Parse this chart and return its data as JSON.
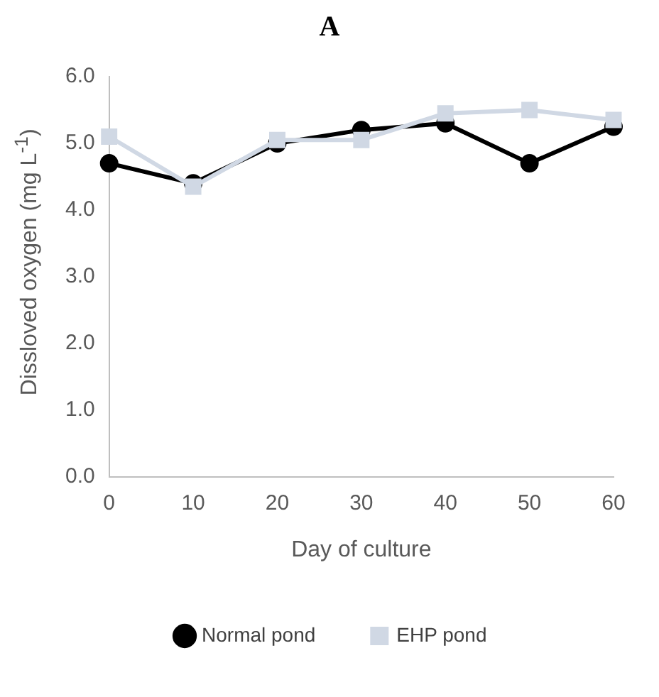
{
  "chart_data": {
    "type": "line",
    "title": "A",
    "xlabel": "Day of culture",
    "ylabel": "Dissloved oxygen (mg L$^{-1}$)",
    "categories": [
      "0",
      "10",
      "20",
      "30",
      "40",
      "50",
      "60"
    ],
    "series": [
      {
        "name": "Normal pond",
        "color": "#000000",
        "marker": "circle",
        "values": [
          4.7,
          4.4,
          5.0,
          5.2,
          5.3,
          4.7,
          5.25
        ]
      },
      {
        "name": "EHP pond",
        "color": "#d0d8e4",
        "marker": "square",
        "values": [
          5.1,
          4.35,
          5.05,
          5.05,
          5.45,
          5.5,
          5.35
        ]
      }
    ],
    "ylim": [
      0,
      6
    ],
    "yticks": [
      {
        "value": 0,
        "label": "0.0"
      },
      {
        "value": 1,
        "label": "1.0"
      },
      {
        "value": 2,
        "label": "2.0"
      },
      {
        "value": 3,
        "label": "3.0"
      },
      {
        "value": 4,
        "label": "4.0"
      },
      {
        "value": 5,
        "label": "5.0"
      },
      {
        "value": 6,
        "label": "6.0"
      }
    ],
    "grid": false,
    "legend": "bottom"
  }
}
